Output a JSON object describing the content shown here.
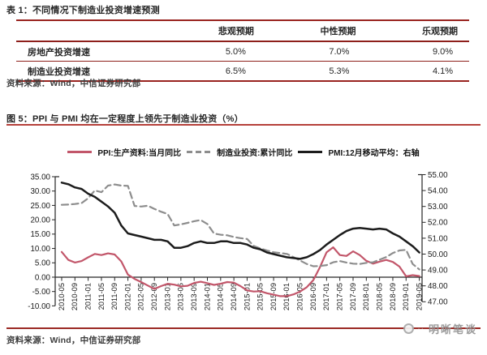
{
  "table_section": {
    "title": "表 1：不同情况下制造业投资增速预测",
    "table": {
      "columns": [
        "",
        "悲观预期",
        "中性预期",
        "乐观预期"
      ],
      "rows": [
        {
          "label": "房地产投资增速",
          "values": [
            "5.0%",
            "7.0%",
            "9.0%"
          ]
        },
        {
          "label": "制造业投资增速",
          "values": [
            "6.5%",
            "5.3%",
            "4.1%"
          ]
        }
      ]
    },
    "source": "资料来源：Wind，中信证券研究部"
  },
  "figure_section": {
    "title": "图 5：PPI 与 PMI 均在一定程度上领先于制造业投资（%）",
    "source": "资料来源：Wind，中信证券研究部",
    "watermark": "明晰笔谈"
  },
  "colors": {
    "table_rule_red": "#992420",
    "title_underline_red": "#b5403a",
    "ppi_red": "#c2566a",
    "mfg_gray": "#8d8d8d",
    "pmi_black": "#1c1c1c",
    "axis_black": "#262626"
  },
  "chart_data": {
    "type": "line",
    "title": "图 5：PPI 与 PMI 均在一定程度上领先于制造业投资（%）",
    "x_start": "2010-05",
    "x_end": "2019-05",
    "sample_step_months": 2,
    "x_tick_labels": [
      "2010-05",
      "2010-09",
      "2011-01",
      "2011-05",
      "2011-09",
      "2012-01",
      "2012-05",
      "2012-09",
      "2013-01",
      "2013-05",
      "2013-09",
      "2014-01",
      "2014-05",
      "2014-09",
      "2015-01",
      "2015-05",
      "2015-09",
      "2016-01",
      "2016-05",
      "2016-09",
      "2017-01",
      "2017-05",
      "2017-09",
      "2018-01",
      "2018-05",
      "2018-09",
      "2019-01",
      "2019-05"
    ],
    "left_axis": {
      "min": -10,
      "max": 35,
      "tick_labels": [
        "35.00",
        "30.00",
        "25.00",
        "20.00",
        "15.00",
        "10.00",
        "5.00",
        "0.00",
        "-5.00",
        "-10.00"
      ]
    },
    "right_axis": {
      "min": 47,
      "max": 55,
      "tick_labels": [
        "55.00",
        "54.00",
        "53.00",
        "52.00",
        "51.00",
        "50.00",
        "49.00",
        "48.00",
        "47.00"
      ]
    },
    "grid": false,
    "legend_position": "top-center",
    "series": [
      {
        "name": "PPI:生产资料:当月同比",
        "axis": "left",
        "style": "solid",
        "color": "#c2566a",
        "values": [
          8.8,
          6.0,
          5.1,
          5.6,
          6.9,
          8.1,
          7.7,
          8.3,
          7.9,
          5.5,
          0.9,
          -0.6,
          -1.7,
          -2.9,
          -4.1,
          -3.1,
          -2.3,
          -2.6,
          -3.2,
          -3.0,
          -2.0,
          -1.6,
          -2.1,
          -2.7,
          -2.3,
          -1.7,
          -1.9,
          -3.1,
          -4.6,
          -5.0,
          -4.9,
          -5.6,
          -6.1,
          -6.6,
          -6.6,
          -6.0,
          -5.0,
          -3.5,
          -1.0,
          3.5,
          8.7,
          10.4,
          7.7,
          7.4,
          9.0,
          7.7,
          5.7,
          4.7,
          5.4,
          6.0,
          5.3,
          3.7,
          0.3,
          0.7,
          0.4
        ]
      },
      {
        "name": "制造业投资:累计同比",
        "axis": "left",
        "style": "dashed",
        "color": "#8d8d8d",
        "values": [
          25.2,
          25.3,
          25.5,
          25.8,
          27.5,
          30.2,
          29.6,
          31.9,
          32.3,
          31.9,
          31.8,
          24.8,
          24.6,
          24.9,
          23.8,
          22.8,
          22.0,
          18.0,
          18.4,
          18.9,
          19.5,
          19.9,
          18.5,
          15.2,
          14.8,
          14.6,
          14.0,
          13.6,
          13.3,
          10.9,
          10.0,
          9.3,
          8.7,
          8.4,
          8.1,
          7.0,
          5.8,
          4.6,
          3.8,
          3.9,
          4.2,
          5.2,
          5.6,
          5.1,
          4.7,
          4.6,
          5.0,
          5.2,
          6.1,
          7.0,
          8.4,
          9.3,
          9.5,
          4.6,
          2.7
        ]
      },
      {
        "name": "PMI:12月移动平均：右轴",
        "axis": "right",
        "style": "solid",
        "color": "#1c1c1c",
        "values": [
          54.5,
          54.4,
          54.2,
          54.1,
          53.8,
          53.6,
          53.3,
          53.0,
          52.6,
          51.8,
          51.3,
          51.2,
          51.1,
          51.0,
          50.9,
          50.9,
          50.8,
          50.4,
          50.4,
          50.5,
          50.7,
          50.8,
          50.7,
          50.7,
          50.8,
          50.8,
          50.7,
          50.7,
          50.6,
          50.4,
          50.3,
          50.1,
          50.0,
          49.9,
          49.8,
          49.75,
          49.7,
          49.8,
          50.0,
          50.25,
          50.6,
          50.9,
          51.2,
          51.45,
          51.6,
          51.65,
          51.6,
          51.55,
          51.6,
          51.55,
          51.3,
          51.1,
          50.8,
          50.5,
          50.1
        ]
      }
    ]
  }
}
